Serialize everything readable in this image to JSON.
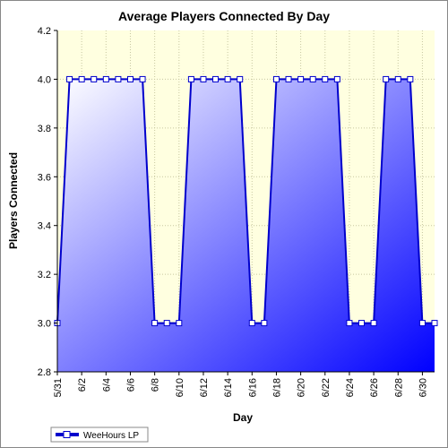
{
  "chart_data": {
    "type": "area",
    "title": "Average Players Connected By Day",
    "xlabel": "Day",
    "ylabel": "Players Connected",
    "ylim": [
      2.8,
      4.2
    ],
    "yticks": [
      "2.8",
      "3.0",
      "3.2",
      "3.4",
      "3.6",
      "3.8",
      "4.0",
      "4.2"
    ],
    "x_tick_labels": [
      "5/31",
      "6/2",
      "6/4",
      "6/6",
      "6/8",
      "6/10",
      "6/12",
      "6/14",
      "6/16",
      "6/18",
      "6/20",
      "6/22",
      "6/24",
      "6/26",
      "6/28",
      "6/30"
    ],
    "x": [
      "5/31",
      "6/1",
      "6/2",
      "6/3",
      "6/4",
      "6/5",
      "6/6",
      "6/7",
      "6/8",
      "6/9",
      "6/10",
      "6/11",
      "6/12",
      "6/13",
      "6/14",
      "6/15",
      "6/16",
      "6/17",
      "6/18",
      "6/19",
      "6/20",
      "6/21",
      "6/22",
      "6/23",
      "6/24",
      "6/25",
      "6/26",
      "6/27",
      "6/28",
      "6/29",
      "6/30",
      "7/1"
    ],
    "series": [
      {
        "name": "WeeHours LP",
        "values": [
          3,
          4,
          4,
          4,
          4,
          4,
          4,
          4,
          3,
          3,
          3,
          4,
          4,
          4,
          4,
          4,
          3,
          3,
          4,
          4,
          4,
          4,
          4,
          4,
          3,
          3,
          3,
          4,
          4,
          4,
          3,
          3
        ]
      }
    ],
    "grid": true,
    "legend_position": "bottom-left",
    "colors": {
      "plot_background": "#ffffe0",
      "area_top": "#ffffff",
      "area_bottom": "#0000ff",
      "line": "#0000cc",
      "grid": "#c8c8a0"
    }
  }
}
